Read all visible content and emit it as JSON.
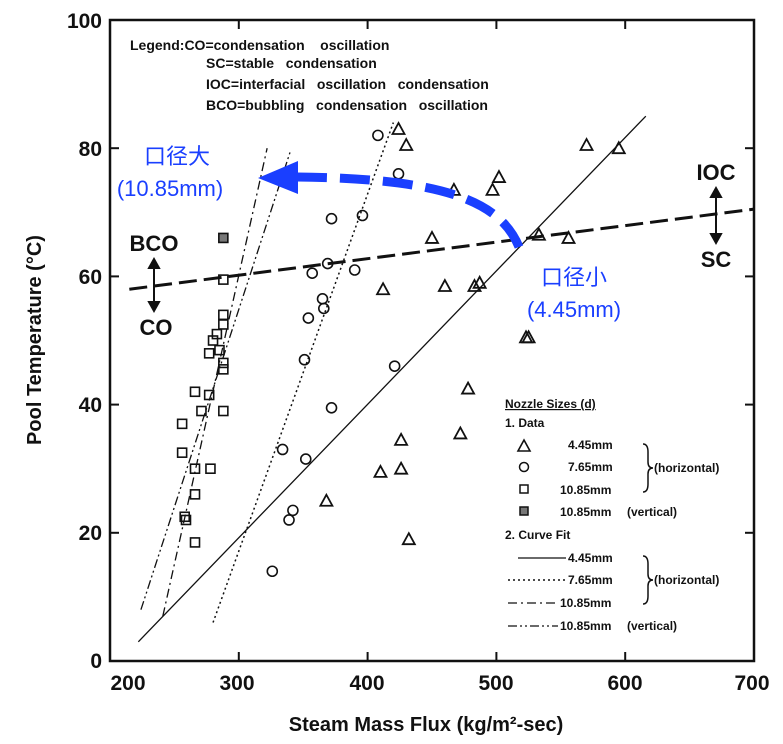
{
  "chart_data": {
    "type": "scatter",
    "xlabel": "Steam Mass Flux (kg/m²-sec)",
    "ylabel": "Pool Temperature (°C)",
    "xlim": [
      200,
      700
    ],
    "ylim": [
      0,
      100
    ],
    "xticks": [
      "200",
      "300",
      "400",
      "500",
      "600",
      "700"
    ],
    "yticks": [
      "0",
      "20",
      "40",
      "60",
      "80",
      "100"
    ],
    "legend_top": [
      "Legend:CO=condensation    oscillation",
      "SC=stable   condensation",
      "IOC=interfacial   oscillation   condensation",
      "BCO=bubbling   condensation   oscillation"
    ],
    "region_labels": {
      "ioc": "IOC",
      "sc": "SC",
      "bco": "BCO",
      "co": "CO"
    },
    "legend": {
      "title": "Nozzle Sizes (d)",
      "data_header": "1. Data",
      "fit_header": "2. Curve Fit",
      "horizontal": "(horizontal)",
      "vertical_note": "(vertical)",
      "entries": [
        "4.45mm",
        "7.65mm",
        "10.85mm",
        "10.85mm"
      ]
    },
    "annotations": {
      "large": [
        "口径大",
        "(10.85mm)"
      ],
      "small": [
        "口径小",
        "(4.45mm)"
      ]
    },
    "series": [
      {
        "name": "4.45mm",
        "marker": "triangle",
        "points": [
          [
            424,
            83
          ],
          [
            430,
            80.5
          ],
          [
            570,
            80.5
          ],
          [
            595,
            80
          ],
          [
            502,
            75.5
          ],
          [
            467,
            73.5
          ],
          [
            497,
            73.5
          ],
          [
            450,
            66
          ],
          [
            533,
            66.5
          ],
          [
            556,
            66
          ],
          [
            412,
            58
          ],
          [
            460,
            58.5
          ],
          [
            487,
            59
          ],
          [
            483,
            58.5
          ],
          [
            523,
            50.5
          ],
          [
            525,
            50.5
          ],
          [
            478,
            42.5
          ],
          [
            426,
            34.5
          ],
          [
            472,
            35.5
          ],
          [
            410,
            29.5
          ],
          [
            426,
            30
          ],
          [
            368,
            25
          ],
          [
            432,
            19
          ]
        ]
      },
      {
        "name": "7.65mm",
        "marker": "circle",
        "points": [
          [
            408,
            82
          ],
          [
            424,
            76
          ],
          [
            372,
            69
          ],
          [
            396,
            69.5
          ],
          [
            369,
            62
          ],
          [
            390,
            61
          ],
          [
            357,
            60.5
          ],
          [
            365,
            56.5
          ],
          [
            366,
            55
          ],
          [
            354,
            53.5
          ],
          [
            421,
            46
          ],
          [
            351,
            47
          ],
          [
            372,
            39.5
          ],
          [
            334,
            33
          ],
          [
            352,
            31.5
          ],
          [
            342,
            23.5
          ],
          [
            339,
            22
          ],
          [
            326,
            14
          ]
        ]
      },
      {
        "name": "10.85mm",
        "marker": "square",
        "points": [
          [
            288,
            59.5
          ],
          [
            288,
            54
          ],
          [
            288,
            52.5
          ],
          [
            283,
            51
          ],
          [
            280,
            50
          ],
          [
            285,
            48.5
          ],
          [
            277,
            48
          ],
          [
            288,
            46.5
          ],
          [
            288,
            45.5
          ],
          [
            266,
            42
          ],
          [
            277,
            41.5
          ],
          [
            271,
            39
          ],
          [
            288,
            39
          ],
          [
            256,
            37
          ],
          [
            256,
            32.5
          ],
          [
            266,
            30
          ],
          [
            278,
            30
          ],
          [
            266,
            26
          ],
          [
            258,
            22.5
          ],
          [
            259,
            22
          ],
          [
            266,
            18.5
          ]
        ]
      },
      {
        "name": "10.85mm (vertical)",
        "marker": "square-filled",
        "points": [
          [
            288,
            66
          ]
        ]
      }
    ],
    "fit_lines": [
      {
        "name": "4.45mm",
        "style": "solid",
        "points": [
          [
            222,
            3
          ],
          [
            616,
            85
          ]
        ]
      },
      {
        "name": "7.65mm",
        "style": "dotted",
        "points": [
          [
            280,
            6
          ],
          [
            420,
            84
          ]
        ]
      },
      {
        "name": "10.85mm",
        "style": "dashdot",
        "points": [
          [
            241,
            7
          ],
          [
            322,
            80
          ]
        ]
      },
      {
        "name": "10.85mm (vertical)",
        "style": "dashdotdot",
        "points": [
          [
            224,
            8
          ],
          [
            340,
            79.5
          ]
        ]
      }
    ],
    "boundary": {
      "style": "dashed",
      "points": [
        [
          215,
          58
        ],
        [
          700,
          70.5
        ]
      ]
    }
  }
}
